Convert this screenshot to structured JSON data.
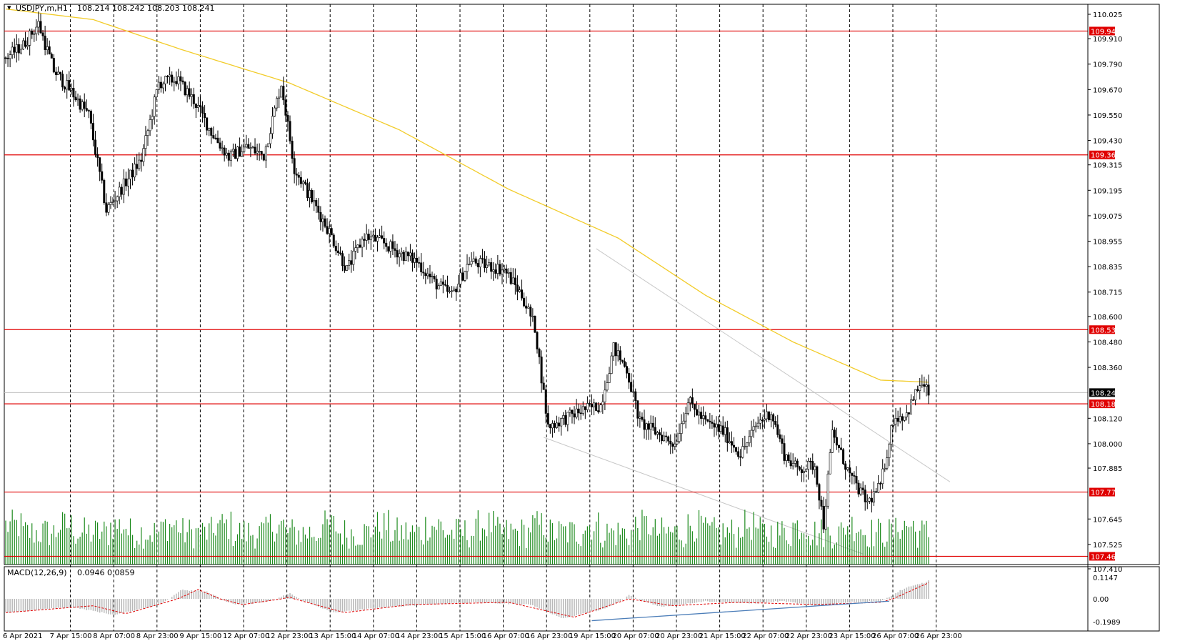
{
  "header": {
    "symbol_label": "USDJPY,m,H1",
    "ohlc": "108.214 108.242 108.203 108.241",
    "macd_label": "MACD(12,26,9)",
    "macd_values": "0.0946 0.0859"
  },
  "colors": {
    "bull_candle": "#000000",
    "bear_candle": "#000000",
    "level_line": "#e00000",
    "ma_line": "#f2cc2a",
    "volume": "#1c8a1c",
    "macd_hist": "#b8b8b8",
    "macd_signal": "#e00000",
    "trendline": "#4b7db8",
    "channel": "#c8c8c8"
  },
  "chart_data": [
    {
      "type": "candlestick",
      "title": "",
      "ylim": [
        107.41,
        110.025
      ],
      "price_ticks": [
        "110.025",
        "109.910",
        "109.790",
        "109.670",
        "109.550",
        "109.430",
        "109.315",
        "109.195",
        "109.075",
        "108.955",
        "108.835",
        "108.715",
        "108.600",
        "108.480",
        "108.360",
        "108.120",
        "108.000",
        "107.885",
        "107.645",
        "107.525",
        "107.410"
      ],
      "time_labels": [
        "6 Apr 2021",
        "7 Apr 15:00",
        "8 Apr 07:00",
        "8 Apr 23:00",
        "9 Apr 15:00",
        "12 Apr 07:00",
        "12 Apr 23:00",
        "13 Apr 15:00",
        "14 Apr 07:00",
        "14 Apr 23:00",
        "15 Apr 15:00",
        "16 Apr 07:00",
        "16 Apr 23:00",
        "19 Apr 15:00",
        "20 Apr 07:00",
        "20 Apr 23:00",
        "21 Apr 15:00",
        "22 Apr 07:00",
        "22 Apr 23:00",
        "23 Apr 15:00",
        "26 Apr 07:00",
        "26 Apr 23:00"
      ],
      "levels": [
        "109.946",
        "109.362",
        "108.538",
        "108.188",
        "107.772",
        "107.469"
      ],
      "current_price": "108.241",
      "price_anchors": [
        {
          "bar": 0,
          "price": 109.82
        },
        {
          "bar": 8,
          "price": 109.88
        },
        {
          "bar": 15,
          "price": 109.98
        },
        {
          "bar": 22,
          "price": 109.76
        },
        {
          "bar": 30,
          "price": 109.66
        },
        {
          "bar": 38,
          "price": 109.55
        },
        {
          "bar": 46,
          "price": 109.1
        },
        {
          "bar": 54,
          "price": 109.22
        },
        {
          "bar": 62,
          "price": 109.34
        },
        {
          "bar": 70,
          "price": 109.7
        },
        {
          "bar": 78,
          "price": 109.72
        },
        {
          "bar": 86,
          "price": 109.62
        },
        {
          "bar": 94,
          "price": 109.47
        },
        {
          "bar": 102,
          "price": 109.35
        },
        {
          "bar": 110,
          "price": 109.4
        },
        {
          "bar": 118,
          "price": 109.36
        },
        {
          "bar": 126,
          "price": 109.7
        },
        {
          "bar": 132,
          "price": 109.3
        },
        {
          "bar": 140,
          "price": 109.15
        },
        {
          "bar": 148,
          "price": 109.0
        },
        {
          "bar": 156,
          "price": 108.82
        },
        {
          "bar": 164,
          "price": 108.98
        },
        {
          "bar": 172,
          "price": 108.95
        },
        {
          "bar": 180,
          "price": 108.9
        },
        {
          "bar": 188,
          "price": 108.86
        },
        {
          "bar": 196,
          "price": 108.76
        },
        {
          "bar": 204,
          "price": 108.7
        },
        {
          "bar": 212,
          "price": 108.86
        },
        {
          "bar": 220,
          "price": 108.84
        },
        {
          "bar": 228,
          "price": 108.82
        },
        {
          "bar": 236,
          "price": 108.7
        },
        {
          "bar": 242,
          "price": 108.55
        },
        {
          "bar": 248,
          "price": 108.08
        },
        {
          "bar": 256,
          "price": 108.12
        },
        {
          "bar": 264,
          "price": 108.16
        },
        {
          "bar": 272,
          "price": 108.18
        },
        {
          "bar": 278,
          "price": 108.45
        },
        {
          "bar": 284,
          "price": 108.35
        },
        {
          "bar": 290,
          "price": 108.1
        },
        {
          "bar": 298,
          "price": 108.05
        },
        {
          "bar": 306,
          "price": 108.0
        },
        {
          "bar": 312,
          "price": 108.2
        },
        {
          "bar": 320,
          "price": 108.1
        },
        {
          "bar": 328,
          "price": 108.06
        },
        {
          "bar": 336,
          "price": 107.95
        },
        {
          "bar": 344,
          "price": 108.1
        },
        {
          "bar": 350,
          "price": 108.15
        },
        {
          "bar": 356,
          "price": 107.95
        },
        {
          "bar": 362,
          "price": 107.88
        },
        {
          "bar": 370,
          "price": 107.9
        },
        {
          "bar": 374,
          "price": 107.62
        },
        {
          "bar": 378,
          "price": 108.05
        },
        {
          "bar": 386,
          "price": 107.85
        },
        {
          "bar": 394,
          "price": 107.72
        },
        {
          "bar": 400,
          "price": 107.8
        },
        {
          "bar": 406,
          "price": 108.12
        },
        {
          "bar": 412,
          "price": 108.14
        },
        {
          "bar": 418,
          "price": 108.28
        },
        {
          "bar": 422,
          "price": 108.241
        }
      ],
      "ma_anchors": [
        {
          "bar": 0,
          "price": 110.05
        },
        {
          "bar": 40,
          "price": 110.0
        },
        {
          "bar": 80,
          "price": 109.86
        },
        {
          "bar": 130,
          "price": 109.7
        },
        {
          "bar": 180,
          "price": 109.48
        },
        {
          "bar": 230,
          "price": 109.2
        },
        {
          "bar": 280,
          "price": 108.97
        },
        {
          "bar": 320,
          "price": 108.7
        },
        {
          "bar": 360,
          "price": 108.48
        },
        {
          "bar": 400,
          "price": 108.3
        },
        {
          "bar": 422,
          "price": 108.29
        }
      ]
    },
    {
      "type": "bar",
      "title": "MACD(12,26,9)",
      "ylim": [
        -0.1989,
        0.1147
      ],
      "ticks": [
        "0.1147",
        "0.00",
        "-0.1989"
      ],
      "hist_anchors": [
        {
          "bar": 0,
          "value": -0.12
        },
        {
          "bar": 30,
          "value": -0.07
        },
        {
          "bar": 50,
          "value": -0.14
        },
        {
          "bar": 70,
          "value": -0.05
        },
        {
          "bar": 80,
          "value": 0.05
        },
        {
          "bar": 92,
          "value": 0.04
        },
        {
          "bar": 105,
          "value": -0.05
        },
        {
          "bar": 118,
          "value": -0.03
        },
        {
          "bar": 130,
          "value": 0.03
        },
        {
          "bar": 150,
          "value": -0.12
        },
        {
          "bar": 170,
          "value": -0.08
        },
        {
          "bar": 190,
          "value": -0.05
        },
        {
          "bar": 215,
          "value": -0.03
        },
        {
          "bar": 240,
          "value": -0.05
        },
        {
          "bar": 255,
          "value": -0.17
        },
        {
          "bar": 275,
          "value": -0.08
        },
        {
          "bar": 285,
          "value": 0.02
        },
        {
          "bar": 300,
          "value": -0.07
        },
        {
          "bar": 320,
          "value": -0.02
        },
        {
          "bar": 340,
          "value": -0.04
        },
        {
          "bar": 355,
          "value": -0.02
        },
        {
          "bar": 370,
          "value": -0.06
        },
        {
          "bar": 385,
          "value": -0.03
        },
        {
          "bar": 400,
          "value": -0.02
        },
        {
          "bar": 410,
          "value": 0.05
        },
        {
          "bar": 422,
          "value": 0.0946
        }
      ],
      "signal_anchors": [
        {
          "bar": 0,
          "value": -0.12
        },
        {
          "bar": 40,
          "value": -0.06
        },
        {
          "bar": 55,
          "value": -0.13
        },
        {
          "bar": 75,
          "value": -0.02
        },
        {
          "bar": 88,
          "value": 0.05
        },
        {
          "bar": 108,
          "value": -0.05
        },
        {
          "bar": 130,
          "value": 0.01
        },
        {
          "bar": 155,
          "value": -0.12
        },
        {
          "bar": 185,
          "value": -0.05
        },
        {
          "bar": 230,
          "value": -0.03
        },
        {
          "bar": 260,
          "value": -0.16
        },
        {
          "bar": 285,
          "value": 0.0
        },
        {
          "bar": 305,
          "value": -0.06
        },
        {
          "bar": 335,
          "value": -0.03
        },
        {
          "bar": 370,
          "value": -0.05
        },
        {
          "bar": 400,
          "value": -0.03
        },
        {
          "bar": 422,
          "value": 0.0859
        }
      ]
    }
  ]
}
